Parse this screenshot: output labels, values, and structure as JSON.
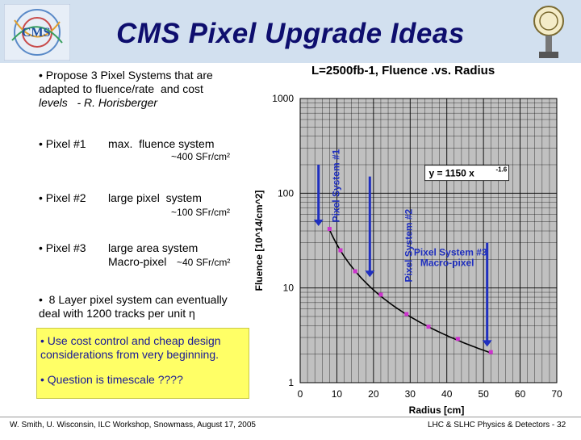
{
  "slide": {
    "title": "CMS Pixel Upgrade Ideas",
    "intro_line1": "• Propose 3 Pixel Systems that are",
    "intro_line2": "adapted to fluence/rate  and cost",
    "intro_line3": "levels   - R. Horisberger",
    "pixels": [
      {
        "name": "• Pixel #1",
        "desc": "max.  fluence system",
        "rate": "~400 SFr/cm²"
      },
      {
        "name": "• Pixel #2",
        "desc": "large pixel  system",
        "rate": "~100 SFr/cm²"
      },
      {
        "name": "• Pixel #3",
        "desc": "large area system",
        "desc2": "Macro-pixel",
        "rate": "~40 SFr/cm²"
      }
    ],
    "layer_line1": "•  8 Layer pixel system can eventually",
    "layer_line2": "deal with 1200 tracks per unit η",
    "box_line1": "• Use cost control and cheap design",
    "box_line2": "considerations from very beginning.",
    "box_line3": "• Question is timescale ????",
    "footer_left": "W. Smith, U. Wisconsin, ILC Workshop, Snowmass, August 17, 2005",
    "footer_right": "LHC & SLHC Physics & Detectors - 32"
  },
  "colors": {
    "title": "#0e0e6e",
    "header_band": "#d2e0ef",
    "box_bg": "#ffff66",
    "box_text": "#1a1a96",
    "chart_bg": "#c0c0c0",
    "curve": "#000000",
    "points": "#cc33cc",
    "arrows": "#1f2fbf",
    "annotation": "#1f2fbf"
  },
  "chart_data": {
    "type": "line",
    "title": "L=2500fb-1, Fluence .vs. Radius",
    "xlabel": "Radius  [cm]",
    "ylabel": "Fluence  [10^14/cm^2]",
    "xlim": [
      0,
      70
    ],
    "ylim": [
      1,
      1000
    ],
    "yscale": "log",
    "xticks": [
      "0",
      "10",
      "20",
      "30",
      "40",
      "50",
      "60",
      "70"
    ],
    "yticks": [
      "1",
      "10",
      "100",
      "1000"
    ],
    "grid": true,
    "fit_label": "y = 1150 x",
    "fit_exponent": "-1.6",
    "fit": {
      "a": 1150,
      "b": -1.6
    },
    "curve_x_range": [
      8,
      52
    ],
    "points": [
      {
        "x": 8,
        "y": 42
      },
      {
        "x": 11,
        "y": 25
      },
      {
        "x": 15,
        "y": 15
      },
      {
        "x": 22,
        "y": 8.5
      },
      {
        "x": 29,
        "y": 5.3
      },
      {
        "x": 35,
        "y": 3.9
      },
      {
        "x": 43,
        "y": 2.9
      },
      {
        "x": 52,
        "y": 2.1
      }
    ],
    "annotations": [
      {
        "label": "Pixel System #1",
        "x": 5,
        "y_from": 200,
        "y_to": 45
      },
      {
        "label": "Pixel System #2",
        "x": 19,
        "y_from": 150,
        "y_to": 13
      },
      {
        "label": "Pixel System #3",
        "label2": "Macro-pixel",
        "x": 51,
        "y_from": 30,
        "y_to": 2.4
      }
    ]
  }
}
